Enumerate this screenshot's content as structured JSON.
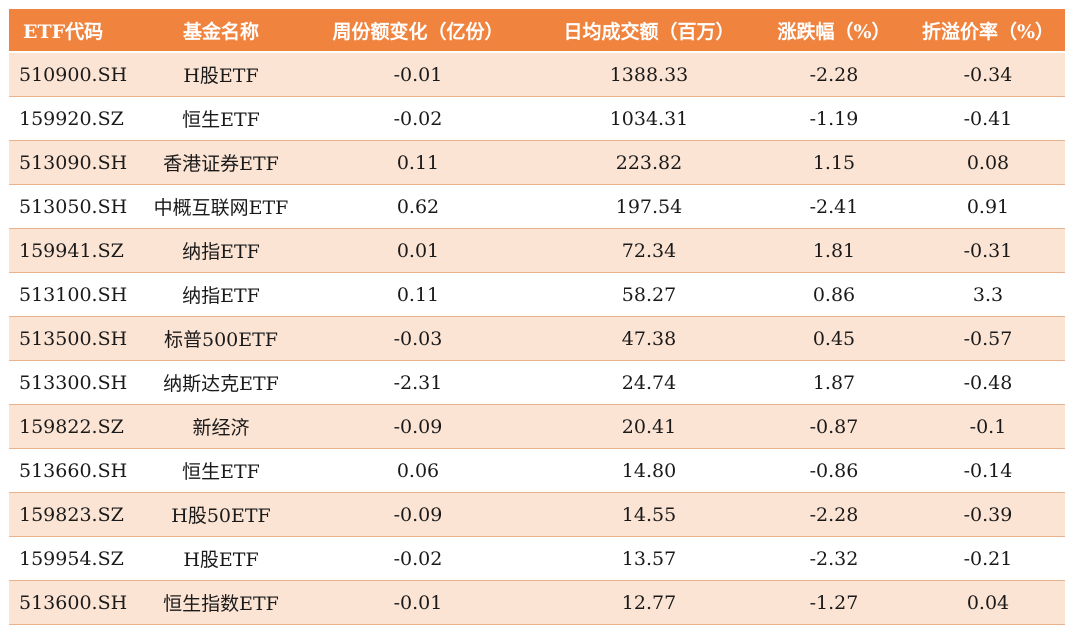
{
  "table": {
    "headers": [
      "ETF代码",
      "基金名称",
      "周份额变化（亿份）",
      "日均成交额（百万）",
      "涨跌幅（%）",
      "折溢价率（%）"
    ],
    "rows": [
      [
        "510900.SH",
        "H股ETF",
        "-0.01",
        "1388.33",
        "-2.28",
        "-0.34"
      ],
      [
        "159920.SZ",
        "恒生ETF",
        "-0.02",
        "1034.31",
        "-1.19",
        "-0.41"
      ],
      [
        "513090.SH",
        "香港证券ETF",
        "0.11",
        "223.82",
        "1.15",
        "0.08"
      ],
      [
        "513050.SH",
        "中概互联网ETF",
        "0.62",
        "197.54",
        "-2.41",
        "0.91"
      ],
      [
        "159941.SZ",
        "纳指ETF",
        "0.01",
        "72.34",
        "1.81",
        "-0.31"
      ],
      [
        "513100.SH",
        "纳指ETF",
        "0.11",
        "58.27",
        "0.86",
        "3.3"
      ],
      [
        "513500.SH",
        "标普500ETF",
        "-0.03",
        "47.38",
        "0.45",
        "-0.57"
      ],
      [
        "513300.SH",
        "纳斯达克ETF",
        "-2.31",
        "24.74",
        "1.87",
        "-0.48"
      ],
      [
        "159822.SZ",
        "新经济",
        "-0.09",
        "20.41",
        "-0.87",
        "-0.1"
      ],
      [
        "513660.SH",
        "恒生ETF",
        "0.06",
        "14.80",
        "-0.86",
        "-0.14"
      ],
      [
        "159823.SZ",
        "H股50ETF",
        "-0.09",
        "14.55",
        "-2.28",
        "-0.39"
      ],
      [
        "159954.SZ",
        "H股ETF",
        "-0.02",
        "13.57",
        "-2.32",
        "-0.21"
      ],
      [
        "513600.SH",
        "恒生指数ETF",
        "-0.01",
        "12.77",
        "-1.27",
        "0.04"
      ]
    ]
  },
  "colors": {
    "header_bg": "#f0843f",
    "stripe_bg": "#fce4d5",
    "row_divider": "#e8b48f"
  }
}
